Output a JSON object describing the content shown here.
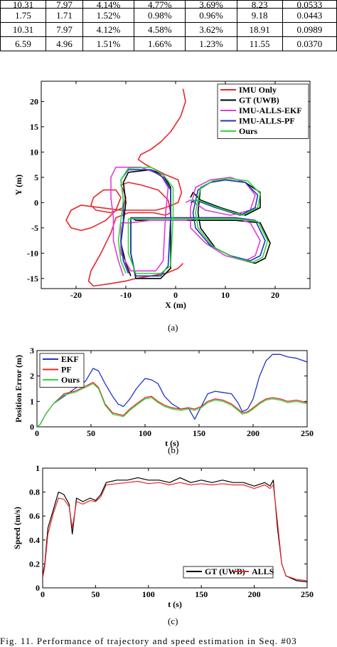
{
  "table": {
    "rows": [
      [
        "",
        "",
        "",
        "",
        "3.69%",
        "8.23",
        "0.0533"
      ],
      [
        "1.75",
        "1.71",
        "1.52%",
        "0.98%",
        "0.96%",
        "9.18",
        "0.0443"
      ],
      [
        "10.31",
        "7.97",
        "4.12%",
        "4.58%",
        "3.62%",
        "18.91",
        "0.0989"
      ],
      [
        "6.59",
        "4.96",
        "1.51%",
        "1.66%",
        "1.23%",
        "11.55",
        "0.0370"
      ]
    ],
    "partial_top_row": [
      "10.31",
      "7.97",
      "4.14%",
      "4.77%"
    ]
  },
  "chart_data": [
    {
      "type": "line",
      "panel_label": "(a)",
      "xlabel": "X (m)",
      "ylabel": "Y (m)",
      "xlim": [
        -27,
        27
      ],
      "ylim": [
        -17,
        24
      ],
      "xticks": [
        -20,
        -10,
        0,
        10,
        20
      ],
      "yticks": [
        -15,
        -10,
        -5,
        0,
        5,
        10,
        15,
        20
      ],
      "legend_position": "top-right",
      "series": [
        {
          "name": "IMU Only",
          "color": "#e8262b",
          "x": [
            1.5,
            2.0,
            1.0,
            -1.0,
            -3.0,
            -5.0,
            -7.0,
            -7.5,
            -6.0,
            -4.0,
            -2.0,
            0.5,
            1.2,
            0.5,
            -2.0,
            -4.0,
            -7.0,
            -11.0,
            -15.0,
            -19.0,
            -21.0,
            -22.0,
            -21.0,
            -19.0,
            -17.0,
            -14.0,
            -12.0,
            -11.0,
            -12.0,
            -14.5,
            -16.5,
            -17.0,
            -16.0,
            -13.0,
            -10.5,
            -10.0,
            -10.5,
            -11.0,
            -9.5,
            -7.0,
            -3.5,
            -1.5,
            -1.0,
            -2.0,
            -4.5,
            -7.0,
            -9.5,
            -12.0,
            -13.0,
            -15.0,
            -17.0,
            -17.5,
            -16.5,
            -13.0,
            -10.0,
            -8.0,
            -5.0,
            -2.0,
            0.5,
            1.5
          ],
          "y": [
            22.5,
            20.0,
            17.0,
            14.0,
            12.0,
            10.5,
            9.5,
            8.5,
            7.5,
            6.5,
            5.5,
            4.5,
            2.0,
            0.0,
            -1.0,
            -1.5,
            -1.5,
            -1.5,
            -1.0,
            -0.5,
            -1.5,
            -3.5,
            -5.0,
            -5.5,
            -5.0,
            -3.5,
            -1.5,
            1.0,
            2.5,
            2.5,
            1.0,
            -0.5,
            -1.5,
            -2.0,
            -1.0,
            1.0,
            2.5,
            3.5,
            4.0,
            3.5,
            2.5,
            0.5,
            -2.0,
            -2.5,
            -2.0,
            -2.0,
            -2.0,
            -3.0,
            -6.0,
            -10.0,
            -13.5,
            -15.5,
            -16.5,
            -16.0,
            -15.5,
            -15.0,
            -14.5,
            -14.0,
            -13.0,
            -12.0
          ]
        },
        {
          "name": "GT (UWB)",
          "color": "#000000",
          "x": [
            -9,
            -10,
            -11,
            -10.5,
            -10,
            -10.5,
            -9.5,
            -5,
            -2.5,
            -1,
            -1,
            -1,
            -3,
            -8,
            -9,
            -9,
            -8,
            -5,
            -1,
            2,
            5,
            8,
            12,
            17,
            19,
            18,
            16,
            12,
            8,
            5,
            4.5,
            5,
            7,
            10,
            14,
            17,
            17,
            14,
            9,
            5,
            3.5,
            3
          ],
          "y": [
            -14.5,
            -12,
            -8,
            -4,
            0,
            4,
            6,
            6.5,
            5.5,
            3,
            -3,
            -13,
            -15,
            -15,
            -10,
            -3,
            -3.5,
            -3.5,
            -3.5,
            -3.5,
            -3.5,
            -3.5,
            -3.5,
            -4,
            -8,
            -11,
            -12,
            -11,
            -9,
            -5,
            -2,
            3,
            4,
            4.5,
            4,
            2,
            -1,
            -2.5,
            -1,
            0.5,
            2,
            1
          ]
        },
        {
          "name": "IMU-ALLS-EKF",
          "color": "#e03cd8",
          "x": [
            -10.5,
            -11.5,
            -12.5,
            -12.5,
            -13,
            -13,
            -12,
            -7,
            -3,
            -1.5,
            -2,
            -2.5,
            -4,
            -9,
            -11,
            -11,
            -9,
            -5,
            -1,
            2,
            5,
            8,
            12,
            15,
            17,
            16,
            14,
            10,
            6,
            3,
            3,
            4,
            7,
            11,
            14,
            16,
            15,
            11,
            6,
            3,
            2
          ],
          "y": [
            -14.5,
            -11.5,
            -7.5,
            -3,
            1,
            5,
            7,
            7,
            5.5,
            3,
            -2,
            -11.5,
            -13.5,
            -13.5,
            -10,
            -4,
            -4,
            -3.5,
            -3.5,
            -3.5,
            -3,
            -3,
            -3,
            -4,
            -7.5,
            -10.5,
            -11.5,
            -10.5,
            -8,
            -5,
            -1,
            3,
            4.5,
            5,
            4,
            1.5,
            -1.5,
            -2.5,
            -1.5,
            0.5,
            0
          ]
        },
        {
          "name": "IMU-ALLS-PF",
          "color": "#1f35c5",
          "x": [
            -9.5,
            -10.5,
            -11,
            -10.5,
            -10.5,
            -11,
            -9.5,
            -5,
            -2.5,
            -1,
            -1,
            -1.5,
            -3,
            -8,
            -9,
            -9,
            -8,
            -5,
            -1,
            2,
            5,
            8,
            12,
            16,
            18,
            17,
            15,
            11,
            7,
            4,
            3.5,
            4.5,
            7,
            10,
            14,
            16.5,
            16,
            13,
            8,
            4,
            3
          ],
          "y": [
            -14,
            -11.5,
            -7.5,
            -3.5,
            0.5,
            4.5,
            6.5,
            6.5,
            5,
            2.5,
            -3,
            -12.5,
            -14.5,
            -14.5,
            -10,
            -3,
            -3,
            -3,
            -3,
            -3,
            -3,
            -3,
            -3,
            -3.5,
            -7.5,
            -10.5,
            -11.5,
            -10.5,
            -8.5,
            -5,
            -2,
            2.5,
            4,
            4.5,
            4,
            1.5,
            -1,
            -2.5,
            -1,
            0.5,
            0
          ]
        },
        {
          "name": "Ours",
          "color": "#33d63a",
          "x": [
            -10,
            -11,
            -11.5,
            -11,
            -10.5,
            -11,
            -9.5,
            -5,
            -2.5,
            -0.5,
            -0.5,
            -1,
            -3,
            -8,
            -9.5,
            -9.5,
            -8,
            -5,
            -1,
            2,
            5,
            8,
            12,
            16.5,
            18.5,
            17.5,
            15.5,
            11.5,
            7.5,
            4.5,
            4,
            5,
            7.5,
            10.5,
            14.5,
            17,
            16.5,
            13.5,
            8.5,
            4.5,
            3
          ],
          "y": [
            -14,
            -11.5,
            -7.5,
            -3.5,
            0.5,
            4.5,
            6.8,
            7,
            5.5,
            3,
            -3,
            -12.5,
            -14,
            -14,
            -10,
            -3.2,
            -3.2,
            -3.2,
            -3.2,
            -3.2,
            -3.2,
            -3.2,
            -3.2,
            -3.7,
            -7.5,
            -10.8,
            -11.8,
            -10.8,
            -8.7,
            -5,
            -2,
            3,
            4.3,
            4.8,
            4.3,
            1.8,
            -1,
            -2.5,
            -1,
            0.5,
            0.5
          ]
        }
      ]
    },
    {
      "type": "line",
      "panel_label": "(b)",
      "xlabel": "t (s)",
      "ylabel": "Position Error (m)",
      "xlim": [
        0,
        250
      ],
      "ylim": [
        0,
        3
      ],
      "xticks": [
        0,
        50,
        100,
        150,
        200,
        250
      ],
      "yticks": [
        0,
        1,
        2,
        3
      ],
      "legend_position": "top-left",
      "series": [
        {
          "name": "EKF",
          "color": "#1f35c5",
          "x": [
            0,
            3,
            8,
            15,
            25,
            35,
            45,
            52,
            57,
            63,
            70,
            75,
            80,
            86,
            92,
            100,
            106,
            112,
            118,
            125,
            133,
            140,
            146,
            152,
            158,
            165,
            172,
            180,
            186,
            190,
            195,
            200,
            206,
            212,
            218,
            225,
            232,
            240,
            250
          ],
          "y": [
            0,
            0.1,
            0.5,
            0.9,
            1.2,
            1.5,
            1.8,
            2.3,
            2.2,
            1.7,
            1.2,
            0.9,
            0.8,
            1.1,
            1.5,
            1.9,
            1.85,
            1.7,
            1.2,
            0.9,
            0.7,
            0.75,
            0.3,
            0.8,
            1.3,
            1.4,
            1.35,
            1.3,
            0.95,
            0.6,
            0.7,
            1.1,
            2.0,
            2.6,
            2.85,
            2.85,
            2.75,
            2.7,
            2.55
          ]
        },
        {
          "name": "PF",
          "color": "#e8262b",
          "x": [
            0,
            3,
            8,
            15,
            25,
            35,
            45,
            52,
            57,
            63,
            70,
            75,
            80,
            86,
            92,
            100,
            106,
            112,
            118,
            125,
            133,
            140,
            146,
            152,
            158,
            165,
            172,
            180,
            186,
            190,
            195,
            200,
            206,
            212,
            218,
            225,
            232,
            240,
            250
          ],
          "y": [
            0,
            0.1,
            0.5,
            0.9,
            1.3,
            1.4,
            1.6,
            1.75,
            1.55,
            0.9,
            0.55,
            0.5,
            0.45,
            0.7,
            0.9,
            1.15,
            1.2,
            1.0,
            0.85,
            0.75,
            0.7,
            0.75,
            0.7,
            0.8,
            1.0,
            1.1,
            1.05,
            0.9,
            0.7,
            0.55,
            0.6,
            0.75,
            0.95,
            1.1,
            1.15,
            1.1,
            1.0,
            1.05,
            0.95
          ]
        },
        {
          "name": "Ours",
          "color": "#33d63a",
          "x": [
            0,
            3,
            8,
            15,
            25,
            35,
            45,
            52,
            57,
            63,
            70,
            75,
            80,
            86,
            92,
            100,
            106,
            112,
            118,
            125,
            133,
            140,
            146,
            152,
            158,
            165,
            172,
            180,
            186,
            190,
            195,
            200,
            206,
            212,
            218,
            225,
            232,
            240,
            250
          ],
          "y": [
            0,
            0.1,
            0.5,
            0.9,
            1.25,
            1.35,
            1.55,
            1.7,
            1.5,
            0.85,
            0.5,
            0.45,
            0.4,
            0.65,
            0.85,
            1.1,
            1.15,
            0.95,
            0.8,
            0.7,
            0.65,
            0.7,
            0.65,
            0.75,
            0.95,
            1.05,
            1.0,
            0.85,
            0.65,
            0.5,
            0.55,
            0.7,
            0.9,
            1.05,
            1.1,
            1.05,
            0.95,
            1.0,
            0.9
          ]
        }
      ]
    },
    {
      "type": "line",
      "panel_label": "(c)",
      "xlabel": "t (s)",
      "ylabel": "Speed (m/s)",
      "xlim": [
        0,
        250
      ],
      "ylim": [
        0,
        1
      ],
      "xticks": [
        0,
        50,
        100,
        150,
        200,
        250
      ],
      "yticks": [
        0,
        0.2,
        0.4,
        0.6,
        0.8,
        1
      ],
      "legend_position": "bottom-right",
      "series": [
        {
          "name": "GT (UWB)",
          "color": "#000000",
          "x": [
            0,
            2,
            5,
            10,
            15,
            20,
            25,
            28,
            32,
            38,
            45,
            50,
            55,
            60,
            70,
            80,
            90,
            100,
            110,
            120,
            130,
            140,
            150,
            160,
            170,
            180,
            190,
            200,
            210,
            215,
            218,
            222,
            226,
            230,
            240,
            250
          ],
          "y": [
            0.1,
            0.2,
            0.5,
            0.65,
            0.8,
            0.78,
            0.7,
            0.45,
            0.75,
            0.72,
            0.75,
            0.73,
            0.78,
            0.88,
            0.9,
            0.9,
            0.92,
            0.9,
            0.9,
            0.88,
            0.92,
            0.88,
            0.9,
            0.88,
            0.9,
            0.88,
            0.88,
            0.85,
            0.88,
            0.85,
            0.9,
            0.5,
            0.2,
            0.1,
            0.06,
            0.05
          ]
        },
        {
          "name": "ALLS",
          "color": "#e8262b",
          "x": [
            0,
            2,
            5,
            10,
            15,
            20,
            25,
            28,
            32,
            38,
            45,
            50,
            55,
            60,
            70,
            80,
            90,
            100,
            110,
            120,
            130,
            140,
            150,
            160,
            170,
            180,
            190,
            200,
            210,
            215,
            218,
            222,
            226,
            230,
            240,
            250
          ],
          "y": [
            0.08,
            0.18,
            0.45,
            0.62,
            0.75,
            0.74,
            0.68,
            0.5,
            0.72,
            0.7,
            0.73,
            0.72,
            0.76,
            0.86,
            0.87,
            0.88,
            0.89,
            0.87,
            0.88,
            0.86,
            0.88,
            0.86,
            0.87,
            0.86,
            0.87,
            0.86,
            0.86,
            0.83,
            0.86,
            0.83,
            0.86,
            0.55,
            0.2,
            0.1,
            0.07,
            0.06
          ]
        }
      ]
    }
  ],
  "caption": "Fig. 11.    Performance of trajectory and speed estimation in Seq. #03"
}
